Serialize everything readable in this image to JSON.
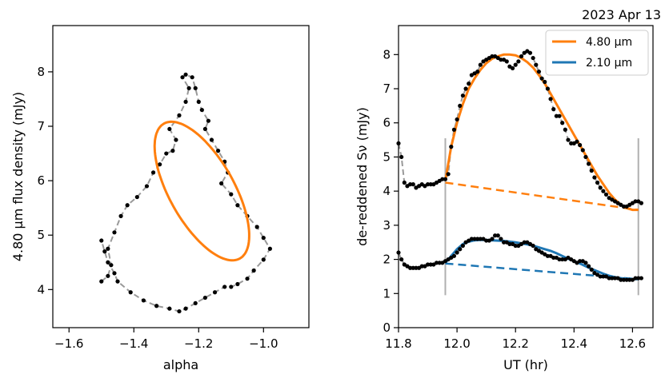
{
  "date_label": "2023 Apr 13",
  "chart_data": [
    {
      "type": "line",
      "xlabel": "alpha",
      "ylabel": "4.80 µm flux density (mJy)",
      "xlim": [
        -1.65,
        -0.86
      ],
      "ylim": [
        3.3,
        8.85
      ],
      "xticks": [
        -1.6,
        -1.4,
        -1.2,
        -1.0
      ],
      "xtick_labels": [
        "−1.6",
        "−1.4",
        "−1.2",
        "−1.0"
      ],
      "yticks": [
        4,
        5,
        6,
        7,
        8
      ],
      "ytick_labels": [
        "4",
        "5",
        "6",
        "7",
        "8"
      ],
      "grid": false,
      "series": [
        {
          "color": "#999999",
          "style": "dashed-with-points",
          "x": [
            -1.5,
            -1.48,
            -1.47,
            -1.48,
            -1.46,
            -1.44,
            -1.42,
            -1.39,
            -1.36,
            -1.34,
            -1.32,
            -1.3,
            -1.28,
            -1.27,
            -1.29,
            -1.26,
            -1.24,
            -1.23,
            -1.25,
            -1.24,
            -1.22,
            -1.21,
            -1.2,
            -1.19,
            -1.17,
            -1.18,
            -1.16,
            -1.14,
            -1.12,
            -1.11,
            -1.13,
            -1.1,
            -1.08,
            -1.05,
            -1.02,
            -1.0,
            -0.98,
            -1.0,
            -1.03,
            -1.05,
            -1.08,
            -1.1,
            -1.12,
            -1.15,
            -1.18,
            -1.21,
            -1.24,
            -1.26,
            -1.29,
            -1.33,
            -1.37,
            -1.41,
            -1.45,
            -1.46,
            -1.48,
            -1.49,
            -1.5
          ],
          "y": [
            4.15,
            4.25,
            4.45,
            4.75,
            5.05,
            5.35,
            5.55,
            5.7,
            5.9,
            6.15,
            6.3,
            6.5,
            6.55,
            6.75,
            6.95,
            7.2,
            7.45,
            7.7,
            7.9,
            7.95,
            7.9,
            7.7,
            7.45,
            7.3,
            7.1,
            6.95,
            6.75,
            6.55,
            6.35,
            6.15,
            5.95,
            5.75,
            5.55,
            5.35,
            5.15,
            4.95,
            4.75,
            4.55,
            4.35,
            4.2,
            4.1,
            4.05,
            4.05,
            3.95,
            3.85,
            3.75,
            3.65,
            3.6,
            3.65,
            3.7,
            3.8,
            3.95,
            4.15,
            4.3,
            4.5,
            4.7,
            4.9
          ]
        },
        {
          "name": "",
          "color": "#ff7f0e",
          "style": "solid-ellipse",
          "center": [
            -1.19,
            5.81
          ],
          "semi_axes": [
            1.63,
            0.1
          ],
          "slope_dy_dx": -10.6,
          "phase_offset": 0.3
        }
      ]
    },
    {
      "type": "line",
      "xlabel": "UT (hr)",
      "ylabel": "de-reddened  Sν (mJy)",
      "xlim": [
        11.8,
        12.67
      ],
      "ylim": [
        0,
        8.85
      ],
      "xticks": [
        11.8,
        12.0,
        12.2,
        12.4,
        12.6
      ],
      "xtick_labels": [
        "11.8",
        "12.0",
        "12.2",
        "12.4",
        "12.6"
      ],
      "yticks": [
        0,
        1,
        2,
        3,
        4,
        5,
        6,
        7,
        8
      ],
      "ytick_labels": [
        "0",
        "1",
        "2",
        "3",
        "4",
        "5",
        "6",
        "7",
        "8"
      ],
      "grid": false,
      "legend": {
        "position": "top-right",
        "entries": [
          {
            "label": "4.80 µm",
            "color": "#ff7f0e"
          },
          {
            "label": "2.10 µm",
            "color": "#1f77b4"
          }
        ]
      },
      "vlines": {
        "x": [
          11.96,
          12.62
        ],
        "y": [
          0.95,
          5.55
        ],
        "color": "#b0b0b0"
      },
      "series": [
        {
          "name": "4.80 µm data",
          "color": "#999999",
          "x": [
            11.8,
            11.81,
            11.82,
            11.83,
            11.84,
            11.85,
            11.86,
            11.87,
            11.88,
            11.89,
            11.9,
            11.91,
            11.92,
            11.93,
            11.94,
            11.95,
            11.96,
            11.97,
            11.98,
            11.99,
            12.0,
            12.01,
            12.02,
            12.03,
            12.04,
            12.05,
            12.06,
            12.07,
            12.08,
            12.09,
            12.1,
            12.11,
            12.12,
            12.13,
            12.14,
            12.15,
            12.16,
            12.17,
            12.18,
            12.19,
            12.2,
            12.21,
            12.22,
            12.23,
            12.24,
            12.25,
            12.26,
            12.27,
            12.28,
            12.29,
            12.3,
            12.31,
            12.32,
            12.33,
            12.34,
            12.35,
            12.36,
            12.37,
            12.38,
            12.39,
            12.4,
            12.41,
            12.42,
            12.43,
            12.44,
            12.45,
            12.46,
            12.47,
            12.48,
            12.49,
            12.5,
            12.51,
            12.52,
            12.53,
            12.54,
            12.55,
            12.56,
            12.57,
            12.58,
            12.59,
            12.6,
            12.61,
            12.62,
            12.63
          ],
          "y": [
            5.4,
            5.0,
            4.25,
            4.15,
            4.2,
            4.2,
            4.1,
            4.15,
            4.2,
            4.15,
            4.2,
            4.2,
            4.2,
            4.25,
            4.3,
            4.35,
            4.35,
            4.5,
            5.3,
            5.8,
            6.1,
            6.5,
            6.8,
            7.0,
            7.15,
            7.4,
            7.45,
            7.5,
            7.7,
            7.8,
            7.85,
            7.9,
            7.95,
            7.95,
            7.9,
            7.85,
            7.85,
            7.8,
            7.65,
            7.6,
            7.7,
            7.8,
            7.95,
            8.05,
            8.1,
            8.05,
            7.9,
            7.7,
            7.5,
            7.3,
            7.2,
            7.0,
            6.7,
            6.4,
            6.2,
            6.2,
            6.0,
            5.8,
            5.5,
            5.4,
            5.4,
            5.45,
            5.35,
            5.2,
            5.0,
            4.8,
            4.6,
            4.4,
            4.25,
            4.1,
            4.0,
            3.9,
            3.8,
            3.75,
            3.7,
            3.65,
            3.6,
            3.55,
            3.55,
            3.6,
            3.65,
            3.7,
            3.7,
            3.65
          ]
        },
        {
          "name": "2.10 µm data",
          "color": "#999999",
          "x": [
            11.8,
            11.81,
            11.82,
            11.83,
            11.84,
            11.85,
            11.86,
            11.87,
            11.88,
            11.89,
            11.9,
            11.91,
            11.92,
            11.93,
            11.94,
            11.95,
            11.96,
            11.97,
            11.98,
            11.99,
            12.0,
            12.01,
            12.02,
            12.03,
            12.04,
            12.05,
            12.06,
            12.07,
            12.08,
            12.09,
            12.1,
            12.11,
            12.12,
            12.13,
            12.14,
            12.15,
            12.16,
            12.17,
            12.18,
            12.19,
            12.2,
            12.21,
            12.22,
            12.23,
            12.24,
            12.25,
            12.26,
            12.27,
            12.28,
            12.29,
            12.3,
            12.31,
            12.32,
            12.33,
            12.34,
            12.35,
            12.36,
            12.37,
            12.38,
            12.39,
            12.4,
            12.41,
            12.42,
            12.43,
            12.44,
            12.45,
            12.46,
            12.47,
            12.48,
            12.49,
            12.5,
            12.51,
            12.52,
            12.53,
            12.54,
            12.55,
            12.56,
            12.57,
            12.58,
            12.59,
            12.6,
            12.61,
            12.62,
            12.63
          ],
          "y": [
            2.2,
            2.0,
            1.85,
            1.8,
            1.75,
            1.75,
            1.75,
            1.75,
            1.8,
            1.8,
            1.85,
            1.85,
            1.85,
            1.9,
            1.9,
            1.9,
            1.95,
            2.0,
            2.05,
            2.1,
            2.2,
            2.3,
            2.4,
            2.5,
            2.55,
            2.6,
            2.6,
            2.6,
            2.6,
            2.6,
            2.55,
            2.55,
            2.6,
            2.7,
            2.7,
            2.6,
            2.5,
            2.5,
            2.45,
            2.45,
            2.4,
            2.4,
            2.45,
            2.5,
            2.5,
            2.45,
            2.4,
            2.3,
            2.25,
            2.2,
            2.15,
            2.1,
            2.1,
            2.05,
            2.05,
            2.0,
            2.0,
            2.0,
            2.05,
            2.0,
            1.95,
            1.9,
            1.95,
            1.95,
            1.9,
            1.8,
            1.7,
            1.6,
            1.55,
            1.5,
            1.5,
            1.5,
            1.45,
            1.45,
            1.45,
            1.45,
            1.4,
            1.4,
            1.4,
            1.4,
            1.4,
            1.45,
            1.45,
            1.45
          ]
        },
        {
          "name": "4.80 µm",
          "color": "#ff7f0e",
          "x": [
            11.96,
            11.98,
            12.0,
            12.02,
            12.04,
            12.06,
            12.08,
            12.1,
            12.12,
            12.14,
            12.16,
            12.18,
            12.2,
            12.22,
            12.24,
            12.26,
            12.28,
            12.3,
            12.32,
            12.34,
            12.36,
            12.38,
            12.4,
            12.42,
            12.44,
            12.46,
            12.48,
            12.5,
            12.52,
            12.54,
            12.56,
            12.58,
            12.6,
            12.62
          ],
          "y": [
            4.3,
            5.3,
            6.0,
            6.55,
            7.0,
            7.3,
            7.55,
            7.75,
            7.88,
            7.95,
            8.0,
            8.0,
            7.98,
            7.9,
            7.78,
            7.62,
            7.4,
            7.15,
            6.85,
            6.55,
            6.25,
            5.95,
            5.65,
            5.35,
            5.05,
            4.75,
            4.45,
            4.2,
            3.95,
            3.75,
            3.6,
            3.5,
            3.45,
            3.45
          ]
        },
        {
          "name": "4.80 µm baseline",
          "color": "#ff7f0e",
          "style": "dashed",
          "x": [
            11.96,
            12.62
          ],
          "y": [
            4.25,
            3.45
          ]
        },
        {
          "name": "2.10 µm",
          "color": "#1f77b4",
          "x": [
            11.96,
            11.98,
            12.0,
            12.02,
            12.04,
            12.06,
            12.08,
            12.1,
            12.12,
            12.14,
            12.16,
            12.18,
            12.2,
            12.22,
            12.24,
            12.26,
            12.28,
            12.3,
            12.32,
            12.34,
            12.36,
            12.38,
            12.4,
            12.42,
            12.44,
            12.46,
            12.48,
            12.5,
            12.52,
            12.54,
            12.56,
            12.58,
            12.6,
            12.62
          ],
          "y": [
            1.9,
            2.1,
            2.3,
            2.45,
            2.52,
            2.56,
            2.57,
            2.57,
            2.56,
            2.55,
            2.54,
            2.52,
            2.5,
            2.47,
            2.44,
            2.4,
            2.35,
            2.3,
            2.25,
            2.18,
            2.1,
            2.02,
            1.95,
            1.88,
            1.8,
            1.72,
            1.65,
            1.58,
            1.52,
            1.48,
            1.45,
            1.43,
            1.42,
            1.42
          ]
        },
        {
          "name": "2.10 µm baseline",
          "color": "#1f77b4",
          "style": "dashed",
          "x": [
            11.96,
            12.62
          ],
          "y": [
            1.88,
            1.42
          ]
        }
      ]
    }
  ]
}
